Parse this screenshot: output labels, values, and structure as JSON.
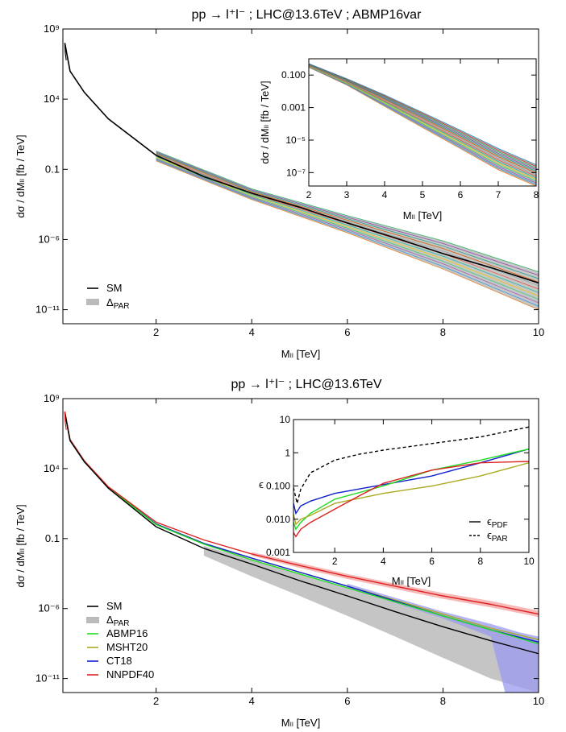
{
  "colors": {
    "sm": "#000000",
    "band": "#bbbbbb",
    "abmp16": "#22dd22",
    "msht20": "#aaaa22",
    "ct18": "#1122cc",
    "nnpdf40": "#dd2222"
  },
  "chart_data": [
    {
      "type": "line",
      "title": "pp → l⁺l⁻ ; LHC@13.6TeV ; ABMP16var",
      "xlabel": "Mₗₗ  [TeV]",
      "ylabel": "dσ / dMₗₗ  [fb / TeV]",
      "xlim": [
        0.05,
        10
      ],
      "ylim": [
        1e-12,
        1000000000.0
      ],
      "yscale": "log",
      "xticks": [
        "2",
        "4",
        "6",
        "8",
        "10"
      ],
      "yticks": [
        "10⁹",
        "10⁴",
        "0.1",
        "10⁻⁶",
        "10⁻¹¹"
      ],
      "legend_position": "bottom-left",
      "legend": [
        {
          "label": "SM",
          "kind": "line"
        },
        {
          "label": "Δ",
          "sub": "PAR",
          "kind": "band"
        }
      ],
      "series": [
        {
          "name": "SM",
          "x": [
            0.09,
            0.2,
            0.5,
            1,
            2,
            3,
            4,
            5,
            6,
            7,
            8,
            9,
            10
          ],
          "y": [
            100000000.0,
            1000000.0,
            30000.0,
            400,
            1,
            0.03,
            0.002,
            0.0002,
            1.5e-05,
            1.3e-06,
            1e-07,
            1e-08,
            8e-10
          ]
        }
      ],
      "band": {
        "label": "ΔPAR",
        "x": [
          2,
          4,
          6,
          8,
          10
        ],
        "lower": [
          0.4,
          0.0007,
          3e-06,
          8e-09,
          1e-11
        ],
        "upper": [
          2,
          0.004,
          5e-05,
          8e-07,
          5e-09
        ]
      },
      "inset": {
        "xlabel": "Mₗₗ  [TeV]",
        "ylabel": "dσ / dMₗₗ  [fb / TeV]",
        "xlim": [
          2,
          8
        ],
        "ylim": [
          1.5e-08,
          1
        ],
        "yscale": "log",
        "xticks": [
          "2",
          "3",
          "4",
          "5",
          "6",
          "7",
          "8"
        ],
        "yticks": [
          "0.100",
          "0.001",
          "10⁻⁵",
          "10⁻⁷"
        ],
        "band": {
          "x": [
            2,
            3,
            4,
            5,
            6,
            7,
            8
          ],
          "lower": [
            0.3,
            0.025,
            0.0012,
            6e-05,
            3e-06,
            1.5e-07,
            1.5e-08
          ],
          "upper": [
            0.5,
            0.06,
            0.006,
            0.0005,
            4e-05,
            3e-06,
            3e-07
          ]
        }
      }
    },
    {
      "type": "line",
      "title": "pp → l⁺l⁻ ; LHC@13.6TeV",
      "xlabel": "Mₗₗ  [TeV]",
      "ylabel": "dσ / dMₗₗ  [fb / TeV]",
      "xlim": [
        0.05,
        10
      ],
      "ylim": [
        1e-12,
        1000000000.0
      ],
      "yscale": "log",
      "xticks": [
        "2",
        "4",
        "6",
        "8",
        "10"
      ],
      "yticks": [
        "10⁹",
        "10⁴",
        "0.1",
        "10⁻⁶",
        "10⁻¹¹"
      ],
      "legend_position": "bottom-left",
      "legend": [
        {
          "label": "SM",
          "kind": "line",
          "color": "#000000"
        },
        {
          "label": "Δ",
          "sub": "PAR",
          "kind": "band",
          "color": "#bbbbbb"
        },
        {
          "label": "ABMP16",
          "kind": "line",
          "color": "#22dd22"
        },
        {
          "label": "MSHT20",
          "kind": "line",
          "color": "#aaaa22"
        },
        {
          "label": "CT18",
          "kind": "line",
          "color": "#1122cc"
        },
        {
          "label": "NNPDF40",
          "kind": "line",
          "color": "#dd2222"
        }
      ],
      "series": [
        {
          "name": "SM",
          "x": [
            0.09,
            0.2,
            0.5,
            1,
            2,
            3,
            4,
            5,
            6,
            7,
            8,
            9,
            10
          ],
          "y": [
            100000000.0,
            1000000.0,
            30000.0,
            400,
            0.7,
            0.02,
            0.0015,
            0.0001,
            8e-06,
            6e-07,
            5e-08,
            5e-09,
            6e-10
          ]
        },
        {
          "name": "ABMP16",
          "x": [
            0.09,
            0.2,
            0.5,
            1,
            2,
            3,
            4,
            5,
            6,
            7,
            8,
            9,
            10
          ],
          "y": [
            100000000.0,
            1000000.0,
            30000.0,
            450,
            1,
            0.04,
            0.003,
            0.0003,
            3e-05,
            3e-06,
            3e-07,
            3e-08,
            3e-09
          ]
        },
        {
          "name": "MSHT20",
          "x": [
            0.09,
            0.2,
            0.5,
            1,
            2,
            3,
            4,
            5,
            6,
            7,
            8,
            9,
            10
          ],
          "y": [
            100000000.0,
            1000000.0,
            30000.0,
            450,
            1.1,
            0.045,
            0.004,
            0.0004,
            4e-05,
            4e-06,
            4e-07,
            4e-08,
            6e-09
          ]
        },
        {
          "name": "CT18",
          "x": [
            0.09,
            0.2,
            0.5,
            1,
            2,
            3,
            4,
            5,
            6,
            7,
            8,
            9,
            10
          ],
          "y": [
            100000000.0,
            1000000.0,
            30000.0,
            450,
            1.1,
            0.045,
            0.004,
            0.0004,
            4e-05,
            3.5e-06,
            3e-07,
            3e-08,
            4e-09
          ]
        },
        {
          "name": "NNPDF40",
          "x": [
            0.09,
            0.2,
            0.5,
            1,
            2,
            3,
            4,
            5,
            6,
            7,
            8,
            9,
            10
          ],
          "y": [
            120000000.0,
            1200000.0,
            35000.0,
            500,
            1.5,
            0.08,
            0.008,
            0.0012,
            0.0002,
            4e-05,
            8e-06,
            2e-06,
            4e-07
          ]
        }
      ],
      "bands": [
        {
          "name": "ΔPAR",
          "color": "#bbbbbb",
          "x": [
            3,
            4,
            5,
            6,
            7,
            8,
            9,
            10
          ],
          "lower": [
            0.006,
            0.0002,
            8e-06,
            3e-07,
            1e-08,
            3e-10,
            1e-11,
            1e-12
          ],
          "upper": [
            0.03,
            0.003,
            0.0003,
            3e-05,
            3e-06,
            3e-07,
            4e-08,
            5e-09
          ]
        },
        {
          "name": "NNPDF40",
          "color": "#f4a0a0",
          "x": [
            4,
            5,
            6,
            7,
            8,
            9,
            10
          ],
          "lower": [
            0.006,
            0.0008,
            0.00013,
            2.5e-05,
            5e-06,
            1.2e-06,
            2.5e-07
          ],
          "upper": [
            0.011,
            0.0018,
            0.0003,
            6e-05,
            1.3e-05,
            3.5e-06,
            7e-07
          ]
        },
        {
          "name": "CT18",
          "color": "#9a9af0",
          "x": [
            6,
            7,
            8,
            9,
            9.3,
            9.6,
            10
          ],
          "lower": [
            3e-05,
            2.5e-06,
            2e-07,
            1e-08,
            1e-12,
            1e-12,
            1e-12
          ],
          "upper": [
            6e-05,
            6e-06,
            6e-07,
            8e-08,
            4e-08,
            2e-08,
            1e-08
          ]
        }
      ],
      "inset": {
        "xlabel": "Mₗₗ  [TeV]",
        "ylabel": "ϵ",
        "xlim": [
          0.3,
          10
        ],
        "ylim": [
          0.001,
          10
        ],
        "yscale": "log",
        "xticks": [
          "2",
          "4",
          "6",
          "8",
          "10"
        ],
        "yticks": [
          "10",
          "1",
          "0.100",
          "0.010",
          "0.001"
        ],
        "legend": [
          {
            "label": "ϵ",
            "sub": "PDF",
            "style": "solid"
          },
          {
            "label": "ϵ",
            "sub": "PAR",
            "style": "dashed"
          }
        ],
        "series": [
          {
            "name": "ϵPAR",
            "style": "dashed",
            "color": "#000000",
            "x": [
              0.3,
              0.45,
              0.6,
              1,
              2,
              3,
              4,
              6,
              8,
              10
            ],
            "y": [
              0.09,
              0.03,
              0.08,
              0.25,
              0.6,
              0.9,
              1.2,
              1.9,
              3,
              6
            ]
          },
          {
            "name": "CT18",
            "color": "#1122cc",
            "x": [
              0.3,
              0.4,
              0.6,
              1,
              2,
              4,
              6,
              8,
              10
            ],
            "y": [
              0.03,
              0.015,
              0.025,
              0.035,
              0.06,
              0.11,
              0.2,
              0.5,
              1.3
            ]
          },
          {
            "name": "ABMP16",
            "color": "#22dd22",
            "x": [
              0.3,
              0.4,
              0.6,
              1,
              2,
              4,
              6,
              8,
              10
            ],
            "y": [
              0.008,
              0.005,
              0.008,
              0.015,
              0.04,
              0.1,
              0.3,
              0.6,
              1.3
            ]
          },
          {
            "name": "MSHT20",
            "color": "#aaaa22",
            "x": [
              0.3,
              0.4,
              0.6,
              1,
              2,
              4,
              6,
              8,
              10
            ],
            "y": [
              0.014,
              0.007,
              0.01,
              0.013,
              0.03,
              0.06,
              0.1,
              0.2,
              0.5
            ]
          },
          {
            "name": "NNPDF40",
            "color": "#dd2222",
            "x": [
              0.3,
              0.4,
              0.6,
              1,
              2,
              3,
              4,
              6,
              8,
              10
            ],
            "y": [
              0.004,
              0.003,
              0.005,
              0.008,
              0.02,
              0.05,
              0.12,
              0.3,
              0.5,
              0.55
            ]
          }
        ]
      }
    }
  ]
}
